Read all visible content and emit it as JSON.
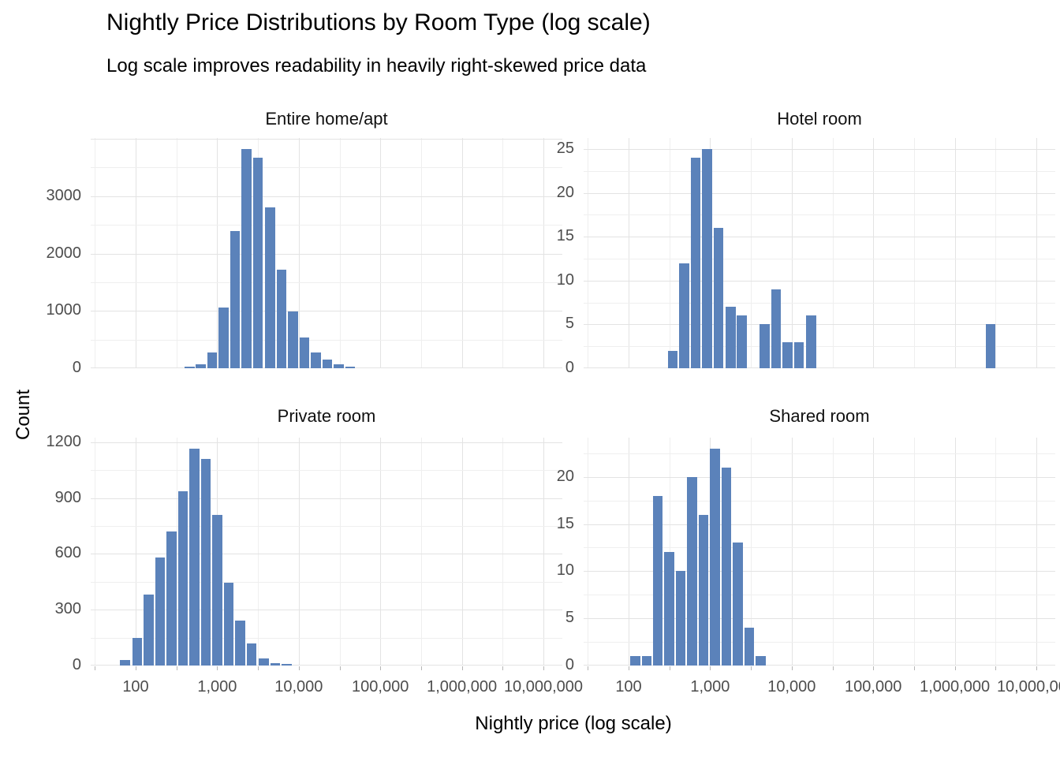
{
  "header": {
    "title": "Nightly Price Distributions by Room Type (log scale)",
    "subtitle": "Log scale improves readability in heavily right-skewed price data"
  },
  "axes": {
    "x_title": "Nightly price (log scale)",
    "y_title": "Count",
    "x_scale": "log10",
    "x_range_log10": [
      1.45,
      7.23
    ],
    "x_tick_values": [
      100,
      1000,
      10000,
      100000,
      1000000,
      10000000
    ],
    "x_tick_labels": [
      "100",
      "1,000",
      "10,000",
      "100,000",
      "1,000,000",
      "10,000,000"
    ],
    "grid": "major and minor, light gray on white"
  },
  "style": {
    "bar_color": "#5b82ba",
    "background": "#ffffff",
    "grid_major_color": "#e3e3e3",
    "grid_minor_color": "#efefef",
    "tick_label_color": "#4d4d4d",
    "tick_mark_color": "#b6b6b6",
    "title_color": "#000000"
  },
  "chart_data": [
    {
      "type": "bar",
      "facet": "Entire home/apt",
      "bin_log10_width": 0.1403,
      "y_max": 4013,
      "y_major_ticks": [
        0,
        1000,
        2000,
        3000
      ],
      "y_minor_step": 500,
      "log10_centers": [
        2.66,
        2.8,
        2.94,
        3.08,
        3.22,
        3.36,
        3.5,
        3.65,
        3.79,
        3.93,
        4.07,
        4.21,
        4.35,
        4.49,
        4.63
      ],
      "price_centers": [
        460,
        630,
        875,
        1210,
        1670,
        2310,
        3190,
        4420,
        6100,
        8450,
        11700,
        16200,
        22400,
        30900,
        42700
      ],
      "counts": [
        25,
        75,
        280,
        1060,
        2395,
        3820,
        3670,
        2805,
        1725,
        990,
        540,
        270,
        145,
        75,
        25
      ]
    },
    {
      "type": "bar",
      "facet": "Hotel room",
      "bin_log10_width": 0.1403,
      "y_max": 26.25,
      "y_major_ticks": [
        0,
        5,
        10,
        15,
        20,
        25
      ],
      "y_minor_step": 2.5,
      "log10_centers": [
        2.54,
        2.68,
        2.82,
        2.96,
        3.1,
        3.25,
        3.39,
        3.67,
        3.81,
        3.95,
        4.09,
        4.24,
        6.44
      ],
      "price_centers": [
        347,
        479,
        661,
        912,
        1260,
        1780,
        2450,
        4680,
        6460,
        8910,
        12300,
        17400,
        2750000
      ],
      "counts": [
        2,
        12,
        24,
        25,
        16,
        7,
        6,
        5,
        9,
        3,
        3,
        6,
        5
      ]
    },
    {
      "type": "bar",
      "facet": "Private room",
      "bin_log10_width": 0.1403,
      "y_max": 1224,
      "y_major_ticks": [
        0,
        300,
        600,
        900,
        1200
      ],
      "y_minor_step": 150,
      "log10_centers": [
        1.87,
        2.02,
        2.16,
        2.3,
        2.44,
        2.58,
        2.72,
        2.86,
        3.0,
        3.14,
        3.28,
        3.42,
        3.57,
        3.71,
        3.85
      ],
      "price_centers": [
        75,
        104,
        144,
        199,
        275,
        380,
        525,
        725,
        1000,
        1390,
        1920,
        2650,
        3670,
        5070,
        7000
      ],
      "counts": [
        30,
        150,
        380,
        580,
        720,
        935,
        1165,
        1110,
        810,
        445,
        240,
        118,
        40,
        12,
        8
      ]
    },
    {
      "type": "bar",
      "facet": "Shared room",
      "bin_log10_width": 0.1403,
      "y_max": 24.15,
      "y_major_ticks": [
        0,
        5,
        10,
        15,
        20
      ],
      "y_minor_step": 2.5,
      "log10_centers": [
        2.08,
        2.22,
        2.36,
        2.5,
        2.64,
        2.78,
        2.92,
        3.06,
        3.2,
        3.34,
        3.48,
        3.62
      ],
      "price_centers": [
        120,
        166,
        229,
        316,
        437,
        603,
        832,
        1150,
        1590,
        2190,
        3020,
        4170
      ],
      "counts": [
        1,
        1,
        18,
        12,
        10,
        20,
        16,
        23,
        21,
        13,
        4,
        1
      ]
    }
  ]
}
